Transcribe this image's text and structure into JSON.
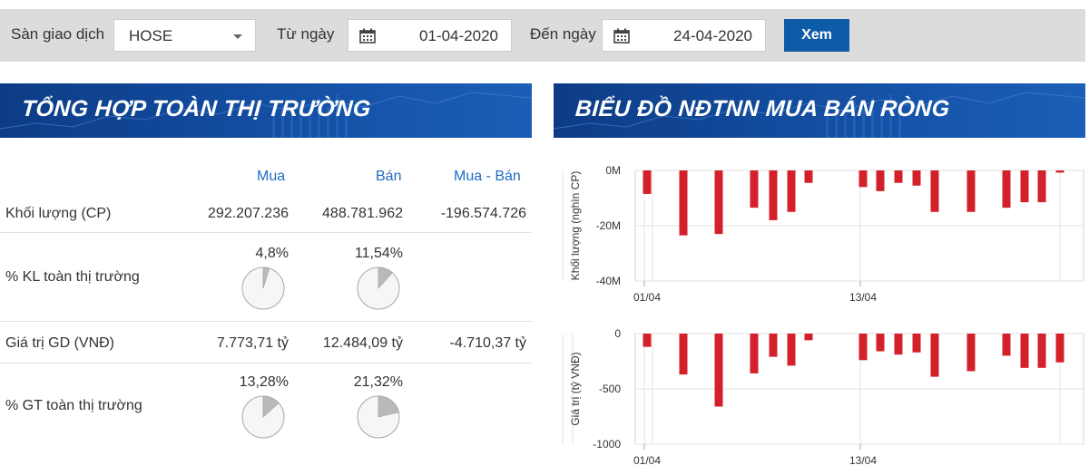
{
  "filter": {
    "exchange_label": "Sàn giao dịch",
    "exchange_value": "HOSE",
    "from_label": "Từ ngày",
    "from_value": "01-04-2020",
    "to_label": "Đến ngày",
    "to_value": "24-04-2020",
    "view_button": "Xem",
    "calendar_icon": "calendar-icon"
  },
  "summary": {
    "title": "TỔNG HỢP TOÀN THỊ TRƯỜNG",
    "headers": {
      "buy": "Mua",
      "sell": "Bán",
      "net": "Mua - Bán"
    },
    "volume": {
      "label": "Khối lượng (CP)",
      "buy": "292.207.236",
      "sell": "488.781.962",
      "net": "-196.574.726"
    },
    "volume_share": {
      "label": "% KL toàn thị trường",
      "buy": "4,8%",
      "sell": "11,54%",
      "buy_fraction": 0.048,
      "sell_fraction": 0.1154
    },
    "value": {
      "label": "Giá trị GD (VNĐ)",
      "buy": "7.773,71 tỷ",
      "sell": "12.484,09 tỷ",
      "net": "-4.710,37 tỷ"
    },
    "value_share": {
      "label": "% GT toàn thị trường",
      "buy": "13,28%",
      "sell": "21,32%",
      "buy_fraction": 0.1328,
      "sell_fraction": 0.2132
    }
  },
  "charts_title": "BIỂU ĐỒ NĐTNN MUA BÁN RÒNG",
  "colors": {
    "bar": "#d4202a",
    "header_blue": "#0e5ca7",
    "accent_text": "#1d6cc2"
  },
  "chart_data": [
    {
      "type": "bar",
      "ylabel": "Khối lượng (nghìn CP)",
      "ylim": [
        -40,
        0
      ],
      "yticks": [
        0,
        -20,
        -40
      ],
      "ytick_labels": [
        "0M",
        "-20M",
        "-40M"
      ],
      "x_labels": [
        "01/04",
        "13/04"
      ],
      "values": [
        -8.5,
        -23.5,
        -23,
        -13.5,
        -18,
        -15,
        -4.5,
        -6,
        -7.5,
        -4.5,
        -5.5,
        -15,
        -15,
        -13.5,
        -11.5,
        -11.5,
        -0.8
      ],
      "grid": true
    },
    {
      "type": "bar",
      "ylabel": "Giá trị (tỷ VNĐ)",
      "ylim": [
        -1000,
        0
      ],
      "yticks": [
        0,
        -500,
        -1000
      ],
      "ytick_labels": [
        "0",
        "-500",
        "-1000"
      ],
      "x_labels": [
        "01/04",
        "13/04"
      ],
      "values": [
        -120,
        -370,
        -660,
        -360,
        -210,
        -290,
        -60,
        -240,
        -160,
        -190,
        -170,
        -390,
        -340,
        -200,
        -310,
        -310,
        -260
      ],
      "grid": true
    }
  ]
}
